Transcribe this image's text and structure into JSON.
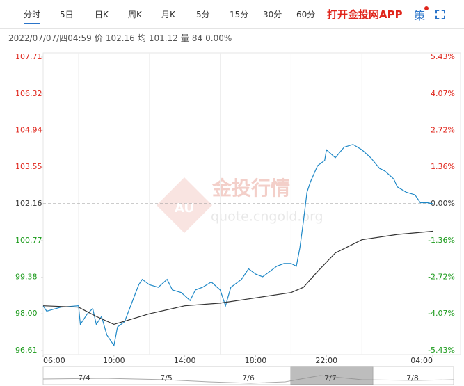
{
  "toolbar": {
    "tabs": [
      "分时",
      "5日",
      "日K",
      "周K",
      "月K",
      "5分",
      "15分",
      "30分",
      "60分"
    ],
    "selected_tab": 0,
    "app_link": "打开金投网APP",
    "strategy": "策"
  },
  "info": {
    "time": "2022/07/07/四04:59",
    "items": [
      {
        "label": "价",
        "value": "102.16"
      },
      {
        "label": "均",
        "value": "101.12"
      },
      {
        "label": "量",
        "value": "84"
      }
    ],
    "change": "0.00%"
  },
  "watermark": {
    "logo": "AU",
    "title": "金投行情",
    "url": "quote.cngold.org"
  },
  "chart_data": {
    "type": "line",
    "xlim": [
      6,
      28
    ],
    "xticks": [
      {
        "value": 6,
        "label": "06:00"
      },
      {
        "value": 10,
        "label": "10:00"
      },
      {
        "value": 14,
        "label": "14:00"
      },
      {
        "value": 18,
        "label": "18:00"
      },
      {
        "value": 22,
        "label": "22:00"
      },
      {
        "value": 28,
        "label": "04:00"
      }
    ],
    "xgrid": [
      8,
      12,
      16,
      20,
      24
    ],
    "ylim": [
      96.61,
      107.71
    ],
    "yticks": [
      96.61,
      {
        "value": 98,
        "label": "98.00"
      },
      99.38,
      100.77,
      102.16,
      103.55,
      104.94,
      106.32,
      107.71
    ],
    "y2lim": [
      -5.43,
      5.43
    ],
    "y2ticks": [
      {
        "value": -5.43,
        "label": "-5.43%"
      },
      {
        "value": -4.07,
        "label": "-4.07%"
      },
      {
        "value": -2.72,
        "label": "-2.72%"
      },
      {
        "value": -1.36,
        "label": "-1.36%"
      },
      {
        "value": 0,
        "label": "0.00%"
      },
      {
        "value": 1.36,
        "label": "1.36%"
      },
      {
        "value": 2.72,
        "label": "2.72%"
      },
      {
        "value": 4.07,
        "label": "4.07%"
      },
      {
        "value": 5.43,
        "label": "5.43%"
      }
    ],
    "reference_line": 102.16,
    "up_color": "#e0261c",
    "down_color": "#1a9a1a",
    "series": [
      {
        "color": "#1e88c7",
        "x": [
          6,
          6.2,
          7,
          8,
          8.1,
          8.5,
          8.8,
          9,
          9.3,
          9.6,
          9.8,
          10,
          10.2,
          10.6,
          11,
          11.4,
          11.6,
          12,
          12.5,
          13,
          13.3,
          13.8,
          14.3,
          14.6,
          15,
          15.5,
          16,
          16.3,
          16.6,
          17.2,
          17.6,
          18,
          18.4,
          18.8,
          19.2,
          19.6,
          20,
          20.3,
          20.5,
          20.7,
          20.9,
          21.1,
          21.5,
          21.9,
          22,
          22.5,
          23,
          23.5,
          24,
          24.5,
          25,
          25.3,
          25.8,
          26,
          26.5,
          27,
          27.3,
          27.7,
          28
        ],
        "values": [
          98.3,
          98.1,
          98.25,
          98.3,
          97.6,
          98.0,
          98.2,
          97.6,
          97.9,
          97.2,
          97.0,
          96.8,
          97.5,
          97.7,
          98.4,
          99.1,
          99.3,
          99.1,
          99.0,
          99.3,
          98.9,
          98.8,
          98.5,
          98.9,
          99.0,
          99.2,
          98.9,
          98.3,
          99.0,
          99.3,
          99.7,
          99.5,
          99.4,
          99.6,
          99.8,
          99.9,
          99.9,
          99.8,
          100.5,
          101.5,
          102.6,
          103.0,
          103.6,
          103.8,
          104.2,
          103.9,
          104.3,
          104.4,
          104.2,
          103.9,
          103.5,
          103.4,
          103.1,
          102.8,
          102.6,
          102.5,
          102.2,
          102.2,
          102.16
        ]
      },
      {
        "color": "#333333",
        "x": [
          6,
          8,
          9,
          10,
          11,
          12,
          14,
          16,
          18,
          20,
          20.7,
          21.5,
          22.5,
          24,
          26,
          28
        ],
        "values": [
          98.3,
          98.25,
          97.9,
          97.6,
          97.8,
          98.0,
          98.3,
          98.4,
          98.6,
          98.8,
          99.0,
          99.6,
          100.3,
          100.8,
          101.0,
          101.12
        ]
      }
    ]
  },
  "navigator": {
    "labels": [
      "7/4",
      "7/5",
      "7/6",
      "7/7",
      "7/8"
    ],
    "selected": 3
  }
}
